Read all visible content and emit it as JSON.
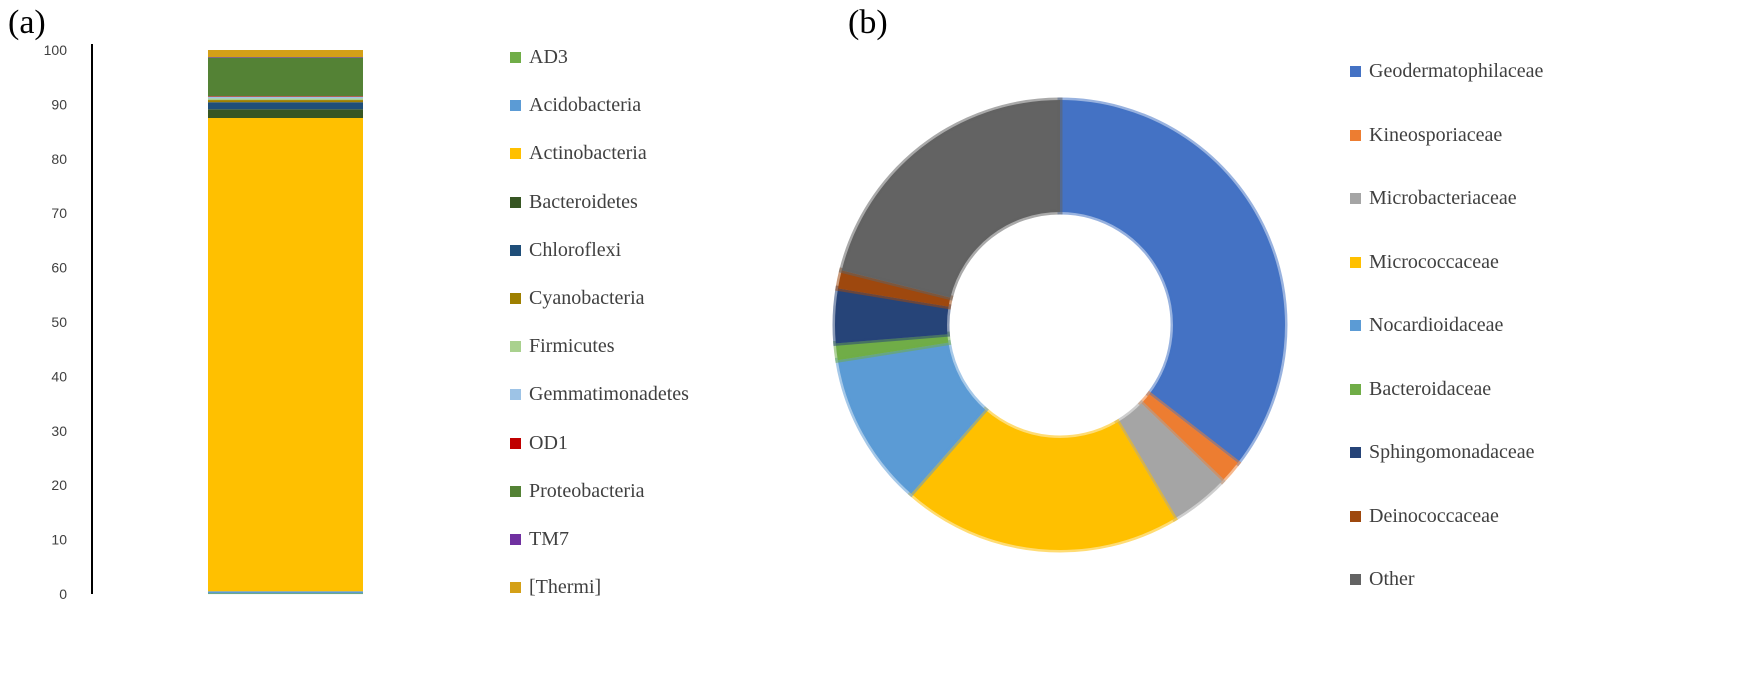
{
  "panels": {
    "a": {
      "label": "(a)"
    },
    "b": {
      "label": "(b)"
    }
  },
  "chart_data": [
    {
      "type": "bar",
      "stacked": true,
      "categories": [
        ""
      ],
      "ylim": [
        0,
        100
      ],
      "yticks": [
        0,
        10,
        20,
        30,
        40,
        50,
        60,
        70,
        80,
        90,
        100
      ],
      "grid": false,
      "legend": "right",
      "series": [
        {
          "name": "AD3",
          "values": [
            0.1
          ],
          "color": "#70ad47"
        },
        {
          "name": "Acidobacteria",
          "values": [
            0.4
          ],
          "color": "#5b9bd5"
        },
        {
          "name": "Actinobacteria",
          "values": [
            87.0
          ],
          "color": "#ffc000"
        },
        {
          "name": "Bacteroidetes",
          "values": [
            1.6
          ],
          "color": "#375623"
        },
        {
          "name": "Chloroflexi",
          "values": [
            1.3
          ],
          "color": "#1f4e79"
        },
        {
          "name": "Cyanobacteria",
          "values": [
            0.4
          ],
          "color": "#9e7f00"
        },
        {
          "name": "Firmicutes",
          "values": [
            0.3
          ],
          "color": "#a9d18e"
        },
        {
          "name": "Gemmatimonadetes",
          "values": [
            0.3
          ],
          "color": "#9dc3e6"
        },
        {
          "name": "OD1",
          "values": [
            0.1
          ],
          "color": "#c00000"
        },
        {
          "name": "Proteobacteria",
          "values": [
            7.1
          ],
          "color": "#548235"
        },
        {
          "name": "TM7",
          "values": [
            0.1
          ],
          "color": "#7030a0"
        },
        {
          "name": "[Thermi]",
          "values": [
            1.3
          ],
          "color": "#d4a017"
        }
      ]
    },
    {
      "type": "pie",
      "donut": true,
      "legend": "right",
      "slices": [
        {
          "name": "Geodermatophilaceae",
          "value": 35.5,
          "color": "#4472c4"
        },
        {
          "name": "Kineosporiaceae",
          "value": 1.7,
          "color": "#ed7d31"
        },
        {
          "name": "Microbacteriaceae",
          "value": 4.3,
          "color": "#a5a5a5"
        },
        {
          "name": "Micrococcaceae",
          "value": 20.0,
          "color": "#ffc000"
        },
        {
          "name": "Nocardioidaceae",
          "value": 11.0,
          "color": "#5b9bd5"
        },
        {
          "name": "Bacteroidaceae",
          "value": 1.2,
          "color": "#70ad47"
        },
        {
          "name": "Sphingomonadaceae",
          "value": 3.9,
          "color": "#264478"
        },
        {
          "name": "Deinococcaceae",
          "value": 1.3,
          "color": "#9e480e"
        },
        {
          "name": "Other",
          "value": 21.1,
          "color": "#636363"
        }
      ]
    }
  ]
}
